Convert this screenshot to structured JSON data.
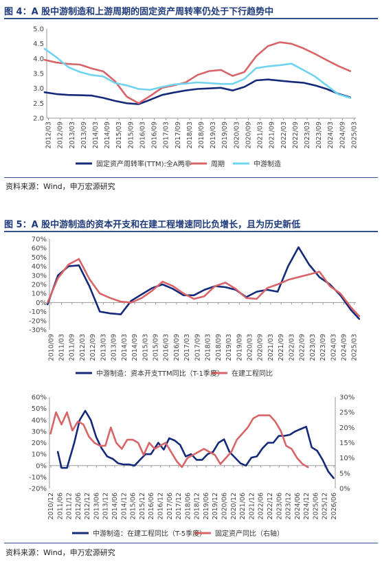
{
  "figure4": {
    "title": "图 4：A 股中游制造和上游周期的固定资产周转率仍处于下行趋势中",
    "source": "资料来源：Wind，申万宏源研究"
  },
  "figure5": {
    "title": "图 5：A 股中游制造的资本开支和在建工程增速同比负增长，且为历史新低",
    "source": "资料来源：Wind，申万宏源研究"
  },
  "colors": {
    "navy": "#14297a",
    "red": "#d86468",
    "cyan": "#70d4ee",
    "axis": "#999999",
    "grid": "#d9d9d9",
    "title": "#1f3a7a"
  },
  "chart_data": [
    {
      "type": "line",
      "title": "",
      "ylim": [
        2.0,
        5.0
      ],
      "yticks": [
        "2.0",
        "2.5",
        "3.0",
        "3.5",
        "4.0",
        "4.5",
        "5.0"
      ],
      "xticks": [
        "2012/03",
        "2012/09",
        "2013/03",
        "2013/09",
        "2014/03",
        "2014/09",
        "2015/03",
        "2015/09",
        "2016/03",
        "2016/09",
        "2017/03",
        "2017/09",
        "2018/03",
        "2018/09",
        "2019/03",
        "2019/09",
        "2020/03",
        "2020/09",
        "2021/03",
        "2021/09",
        "2022/03",
        "2022/09",
        "2023/03",
        "2023/09",
        "2024/03",
        "2024/09",
        "2025/03"
      ],
      "x": [
        2012.0,
        2012.5,
        2013.0,
        2013.5,
        2014.0,
        2014.5,
        2015.0,
        2015.5,
        2016.0,
        2016.5,
        2017.0,
        2017.5,
        2018.0,
        2018.5,
        2019.0,
        2019.5,
        2020.0,
        2020.5,
        2021.0,
        2021.5,
        2022.0,
        2022.5,
        2023.0,
        2023.5,
        2024.0,
        2024.5,
        2025.0
      ],
      "series": [
        {
          "name": "固定资产周转率(TTM):全A两非",
          "color": "#14297a",
          "values": [
            2.87,
            2.81,
            2.78,
            2.77,
            2.76,
            2.68,
            2.58,
            2.5,
            2.47,
            2.62,
            2.78,
            2.86,
            2.93,
            2.98,
            3.0,
            3.02,
            2.93,
            3.05,
            3.27,
            3.3,
            3.26,
            3.22,
            3.19,
            3.1,
            2.98,
            2.82,
            2.7
          ]
        },
        {
          "name": "周期",
          "color": "#d86468",
          "values": [
            3.96,
            3.87,
            3.82,
            3.8,
            3.67,
            3.57,
            3.24,
            2.72,
            2.5,
            2.75,
            3.02,
            3.1,
            3.2,
            3.45,
            3.58,
            3.62,
            3.42,
            3.55,
            4.08,
            4.42,
            4.55,
            4.5,
            4.35,
            4.16,
            3.95,
            3.75,
            3.58
          ]
        },
        {
          "name": "中游制造",
          "color": "#70d4ee",
          "values": [
            4.33,
            4.05,
            3.72,
            3.55,
            3.45,
            3.4,
            3.18,
            3.1,
            2.98,
            2.95,
            3.05,
            3.13,
            3.16,
            3.2,
            3.18,
            3.15,
            3.15,
            3.32,
            3.68,
            3.74,
            3.78,
            3.83,
            3.62,
            3.4,
            3.1,
            2.8,
            2.68
          ]
        }
      ]
    },
    {
      "type": "line",
      "title": "",
      "ylim": [
        -0.3,
        0.7
      ],
      "yticks": [
        "-30%",
        "-20%",
        "-10%",
        "0%",
        "10%",
        "20%",
        "30%",
        "40%",
        "50%",
        "60%",
        "70%"
      ],
      "xticks": [
        "2010/09",
        "2011/03",
        "2011/09",
        "2012/03",
        "2012/09",
        "2013/03",
        "2013/09",
        "2014/03",
        "2014/09",
        "2015/03",
        "2015/09",
        "2016/03",
        "2016/09",
        "2017/03",
        "2017/09",
        "2018/03",
        "2018/09",
        "2019/03",
        "2019/09",
        "2020/03",
        "2020/09",
        "2021/03",
        "2021/09",
        "2022/03",
        "2022/09",
        "2023/03",
        "2023/09",
        "2024/03",
        "2024/09",
        "2025/03"
      ],
      "x": [
        2010.5,
        2011.0,
        2011.5,
        2012.0,
        2012.5,
        2013.0,
        2013.5,
        2014.0,
        2014.5,
        2015.0,
        2015.5,
        2016.0,
        2016.5,
        2017.0,
        2017.5,
        2018.0,
        2018.5,
        2019.0,
        2019.5,
        2020.0,
        2020.5,
        2021.0,
        2021.5,
        2022.0,
        2022.5,
        2023.0,
        2023.5,
        2024.0,
        2024.5,
        2025.0,
        2025.4
      ],
      "series": [
        {
          "name": "中游制造：资本开支TTM同比（T-1季度）",
          "color": "#14297a",
          "values": [
            -0.02,
            0.3,
            0.4,
            0.41,
            0.18,
            -0.1,
            -0.12,
            -0.13,
            0.02,
            0.09,
            0.16,
            0.2,
            0.15,
            0.08,
            0.08,
            0.14,
            0.18,
            0.17,
            0.14,
            0.06,
            0.12,
            0.14,
            0.12,
            0.4,
            0.61,
            0.42,
            0.28,
            0.2,
            0.08,
            -0.08,
            -0.18
          ]
        },
        {
          "name": "在建工程同比",
          "color": "#d86468",
          "values": [
            0.0,
            0.27,
            0.42,
            0.48,
            0.26,
            0.1,
            0.05,
            0.01,
            0.0,
            0.05,
            0.13,
            0.23,
            0.18,
            0.1,
            0.04,
            0.07,
            0.18,
            0.22,
            0.15,
            0.05,
            0.04,
            0.16,
            0.2,
            0.25,
            0.28,
            0.31,
            0.34,
            0.18,
            0.1,
            -0.05,
            -0.15
          ]
        }
      ]
    },
    {
      "type": "line",
      "title": "",
      "ylim": [
        -0.2,
        0.6
      ],
      "y2lim": [
        0.0,
        0.3
      ],
      "yticks": [
        "-20%",
        "-10%",
        "0%",
        "10%",
        "20%",
        "30%",
        "40%",
        "50%",
        "60%"
      ],
      "y2ticks": [
        "0%",
        "5%",
        "10%",
        "15%",
        "20%",
        "25%",
        "30%"
      ],
      "xticks": [
        "2010/12",
        "2011/06",
        "2011/12",
        "2012/06",
        "2012/12",
        "2013/06",
        "2013/12",
        "2014/06",
        "2014/12",
        "2015/06",
        "2015/12",
        "2016/06",
        "2016/12",
        "2017/06",
        "2017/12",
        "2018/06",
        "2018/12",
        "2019/06",
        "2019/12",
        "2020/06",
        "2020/12",
        "2021/06",
        "2021/12",
        "2022/06",
        "2022/12",
        "2023/06",
        "2023/12",
        "2024/06",
        "2024/12",
        "2025/06",
        "2025/12",
        "2026/06"
      ],
      "series": [
        {
          "name": "中游制造：在建工程同比（T-5季度）",
          "color": "#14297a",
          "axis": "left",
          "x": [
            2011.3,
            2011.5,
            2011.8,
            2012.2,
            2012.5,
            2012.8,
            2013.1,
            2013.4,
            2013.7,
            2014.0,
            2014.3,
            2014.6,
            2014.9,
            2015.2,
            2015.5,
            2015.8,
            2016.1,
            2016.4,
            2016.8,
            2017.1,
            2017.4,
            2017.7,
            2018.0,
            2018.3,
            2018.6,
            2018.9,
            2019.2,
            2019.5,
            2019.8,
            2020.1,
            2020.4,
            2020.7,
            2021.0,
            2021.3,
            2021.6,
            2021.9,
            2022.2,
            2022.5,
            2022.8,
            2023.1,
            2023.4,
            2023.7,
            2024.0,
            2024.3,
            2024.6,
            2024.9,
            2025.2,
            2025.5,
            2025.8,
            2026.1,
            2026.4
          ],
          "values": [
            0.12,
            -0.02,
            -0.02,
            0.2,
            0.4,
            0.48,
            0.4,
            0.25,
            0.15,
            0.08,
            0.06,
            0.02,
            0.01,
            0.01,
            0.0,
            0.05,
            0.1,
            0.1,
            0.2,
            0.14,
            0.24,
            0.22,
            0.18,
            0.08,
            0.1,
            0.05,
            0.05,
            0.1,
            0.12,
            0.2,
            0.23,
            0.12,
            0.07,
            0.02,
            0.0,
            0.07,
            0.08,
            0.15,
            0.2,
            0.2,
            0.26,
            0.26,
            0.27,
            0.3,
            0.32,
            0.34,
            0.16,
            0.13,
            0.05,
            -0.05,
            -0.11
          ]
        },
        {
          "name": "固定资产同比（右轴）",
          "color": "#d86468",
          "axis": "right",
          "x": [
            2010.9,
            2011.2,
            2011.5,
            2011.8,
            2012.1,
            2012.4,
            2012.7,
            2013.0,
            2013.3,
            2013.6,
            2013.9,
            2014.2,
            2014.5,
            2014.8,
            2015.1,
            2015.4,
            2015.7,
            2016.0,
            2016.3,
            2016.6,
            2016.9,
            2017.2,
            2017.5,
            2017.8,
            2018.1,
            2018.4,
            2018.7,
            2019.0,
            2019.3,
            2019.6,
            2019.9,
            2020.2,
            2020.5,
            2020.8,
            2021.1,
            2021.4,
            2021.7,
            2022.0,
            2022.3,
            2022.6,
            2022.9,
            2023.2,
            2023.5,
            2023.8,
            2024.1,
            2024.4,
            2024.7,
            2025.0
          ],
          "values": [
            0.18,
            0.25,
            0.21,
            0.25,
            0.19,
            0.22,
            0.21,
            0.17,
            0.15,
            0.14,
            0.14,
            0.2,
            0.15,
            0.13,
            0.16,
            0.16,
            0.15,
            0.11,
            0.15,
            0.13,
            0.14,
            0.15,
            0.12,
            0.09,
            0.07,
            0.1,
            0.11,
            0.12,
            0.13,
            0.12,
            0.11,
            0.08,
            0.1,
            0.12,
            0.16,
            0.18,
            0.2,
            0.23,
            0.24,
            0.24,
            0.24,
            0.22,
            0.19,
            0.14,
            0.13,
            0.1,
            0.08,
            0.07
          ]
        }
      ]
    }
  ]
}
